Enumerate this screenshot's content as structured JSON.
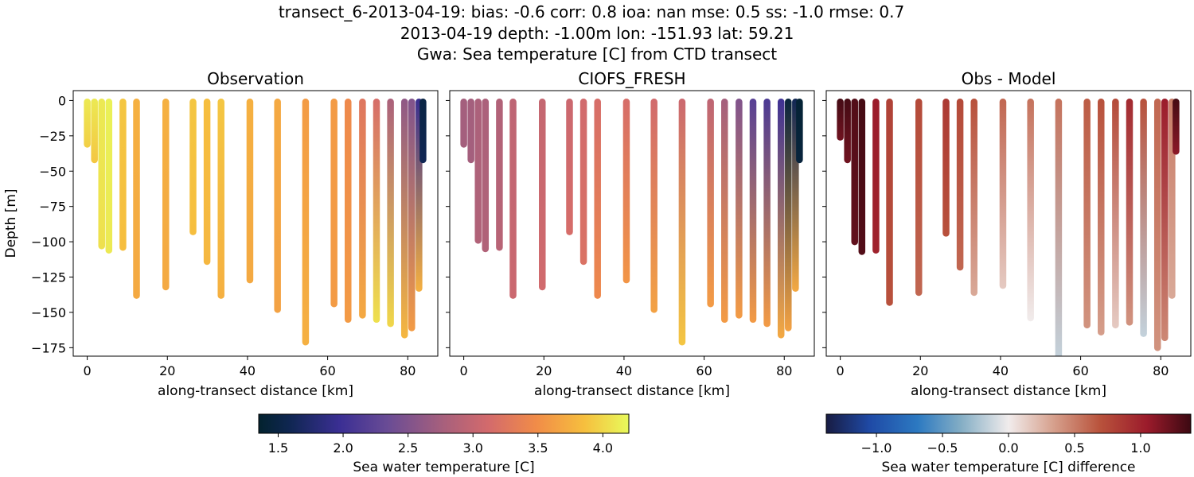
{
  "title_lines": [
    "transect_6-2013-04-19: bias: -0.6  corr: 0.8  ioa: nan  mse: 0.5  ss: -1.0  rmse: 0.7",
    "2013-04-19 depth: -1.00m lon: -151.93 lat: 59.21",
    "Gwa: Sea temperature [C] from CTD transect"
  ],
  "chart_data": [
    {
      "type": "scatter",
      "title": "Observation",
      "xlabel": "along-transect distance [km]",
      "ylabel": "Depth [m]",
      "xlim": [
        -3.5,
        87.5
      ],
      "ylim": [
        -181,
        7
      ],
      "xticks": [
        0,
        20,
        40,
        60,
        80
      ],
      "yticks": [
        0,
        -25,
        -50,
        -75,
        -100,
        -125,
        -150,
        -175
      ],
      "colormap": "thermal",
      "color_range": [
        1.35,
        4.2
      ],
      "casts": [
        {
          "x": 0.0,
          "depth": -31,
          "t_top": 4.1,
          "t_bottom": 3.95
        },
        {
          "x": 1.8,
          "depth": -42,
          "t_top": 4.1,
          "t_bottom": 3.9
        },
        {
          "x": 3.6,
          "depth": -103,
          "t_top": 4.1,
          "t_bottom": 4.05
        },
        {
          "x": 5.4,
          "depth": -106,
          "t_top": 4.15,
          "t_bottom": 4.1
        },
        {
          "x": 8.9,
          "depth": -104,
          "t_top": 3.9,
          "t_bottom": 3.85
        },
        {
          "x": 12.3,
          "depth": -138,
          "t_top": 3.75,
          "t_bottom": 3.7
        },
        {
          "x": 19.6,
          "depth": -132,
          "t_top": 3.75,
          "t_bottom": 3.7
        },
        {
          "x": 26.4,
          "depth": -93,
          "t_top": 3.9,
          "t_bottom": 3.85
        },
        {
          "x": 29.9,
          "depth": -114,
          "t_top": 3.85,
          "t_bottom": 3.8
        },
        {
          "x": 33.4,
          "depth": -138,
          "t_top": 3.9,
          "t_bottom": 3.75
        },
        {
          "x": 40.6,
          "depth": -127,
          "t_top": 3.75,
          "t_bottom": 3.7
        },
        {
          "x": 47.5,
          "depth": -148,
          "t_top": 3.7,
          "t_bottom": 3.65
        },
        {
          "x": 54.5,
          "depth": -171,
          "t_top": 3.6,
          "t_bottom": 3.75
        },
        {
          "x": 61.6,
          "depth": -144,
          "t_top": 3.6,
          "t_bottom": 3.6
        },
        {
          "x": 65.1,
          "depth": -155,
          "t_top": 3.45,
          "t_bottom": 3.6
        },
        {
          "x": 68.7,
          "depth": -152,
          "t_top": 3.25,
          "t_bottom": 3.7
        },
        {
          "x": 72.2,
          "depth": -155,
          "t_top": 3.15,
          "t_bottom": 4.05
        },
        {
          "x": 75.7,
          "depth": -158,
          "t_top": 2.8,
          "t_bottom": 4.0
        },
        {
          "x": 79.2,
          "depth": -166,
          "t_top": 2.6,
          "t_bottom": 3.8
        },
        {
          "x": 81.0,
          "depth": -161,
          "t_top": 2.5,
          "t_bottom": 3.6
        },
        {
          "x": 82.8,
          "depth": -133,
          "t_top": 1.95,
          "t_bottom": 3.75
        },
        {
          "x": 83.8,
          "depth": -42,
          "t_top": 1.5,
          "t_bottom": 1.6
        }
      ]
    },
    {
      "type": "scatter",
      "title": "CIOFS_FRESH",
      "xlabel": "along-transect distance [km]",
      "ylabel": "",
      "xlim": [
        -3.5,
        87.5
      ],
      "ylim": [
        -181,
        7
      ],
      "xticks": [
        0,
        20,
        40,
        60,
        80
      ],
      "yticks": [
        0,
        -25,
        -50,
        -75,
        -100,
        -125,
        -150,
        -175
      ],
      "colormap": "thermal",
      "color_range": [
        1.35,
        4.2
      ],
      "casts": [
        {
          "x": 0.0,
          "depth": -31,
          "t_top": 2.75,
          "t_bottom": 2.75
        },
        {
          "x": 1.8,
          "depth": -42,
          "t_top": 2.75,
          "t_bottom": 2.75
        },
        {
          "x": 3.6,
          "depth": -99,
          "t_top": 2.8,
          "t_bottom": 2.85
        },
        {
          "x": 5.4,
          "depth": -105,
          "t_top": 2.8,
          "t_bottom": 2.85
        },
        {
          "x": 8.9,
          "depth": -104,
          "t_top": 2.85,
          "t_bottom": 2.9
        },
        {
          "x": 12.3,
          "depth": -138,
          "t_top": 2.95,
          "t_bottom": 3.05
        },
        {
          "x": 19.6,
          "depth": -132,
          "t_top": 3.0,
          "t_bottom": 3.1
        },
        {
          "x": 26.4,
          "depth": -93,
          "t_top": 3.05,
          "t_bottom": 3.15
        },
        {
          "x": 29.9,
          "depth": -114,
          "t_top": 3.1,
          "t_bottom": 3.2
        },
        {
          "x": 33.4,
          "depth": -138,
          "t_top": 3.15,
          "t_bottom": 3.45
        },
        {
          "x": 40.6,
          "depth": -127,
          "t_top": 3.15,
          "t_bottom": 3.55
        },
        {
          "x": 47.5,
          "depth": -148,
          "t_top": 3.1,
          "t_bottom": 3.65
        },
        {
          "x": 54.5,
          "depth": -171,
          "t_top": 3.05,
          "t_bottom": 3.9
        },
        {
          "x": 61.6,
          "depth": -144,
          "t_top": 2.95,
          "t_bottom": 3.6
        },
        {
          "x": 65.1,
          "depth": -155,
          "t_top": 2.75,
          "t_bottom": 3.6
        },
        {
          "x": 68.7,
          "depth": -152,
          "t_top": 2.5,
          "t_bottom": 3.6
        },
        {
          "x": 72.2,
          "depth": -155,
          "t_top": 2.2,
          "t_bottom": 3.6
        },
        {
          "x": 75.7,
          "depth": -158,
          "t_top": 2.1,
          "t_bottom": 3.6
        },
        {
          "x": 79.2,
          "depth": -166,
          "t_top": 2.0,
          "t_bottom": 3.7
        },
        {
          "x": 81.0,
          "depth": -161,
          "t_top": 1.45,
          "t_bottom": 3.65
        },
        {
          "x": 82.8,
          "depth": -133,
          "t_top": 1.6,
          "t_bottom": 3.7
        },
        {
          "x": 83.8,
          "depth": -42,
          "t_top": 1.4,
          "t_bottom": 1.45
        }
      ]
    },
    {
      "type": "scatter",
      "title": "Obs - Model",
      "xlabel": "along-transect distance [km]",
      "ylabel": "",
      "xlim": [
        -3.5,
        87.5
      ],
      "ylim": [
        -181,
        7
      ],
      "xticks": [
        0,
        20,
        40,
        60,
        80
      ],
      "yticks": [
        0,
        -25,
        -50,
        -75,
        -100,
        -125,
        -150,
        -175
      ],
      "colormap": "balance",
      "color_range": [
        -1.38,
        1.38
      ],
      "casts": [
        {
          "x": 0.0,
          "depth": -26,
          "t_top": 1.35,
          "t_bottom": 1.2
        },
        {
          "x": 1.8,
          "depth": -42,
          "t_top": 1.35,
          "t_bottom": 1.2
        },
        {
          "x": 3.6,
          "depth": -100,
          "t_top": 1.3,
          "t_bottom": 1.25
        },
        {
          "x": 5.4,
          "depth": -107,
          "t_top": 1.35,
          "t_bottom": 1.3
        },
        {
          "x": 8.9,
          "depth": -106,
          "t_top": 1.05,
          "t_bottom": 1.0
        },
        {
          "x": 12.3,
          "depth": -143,
          "t_top": 0.8,
          "t_bottom": 0.7
        },
        {
          "x": 19.6,
          "depth": -136,
          "t_top": 0.75,
          "t_bottom": 0.6
        },
        {
          "x": 26.4,
          "depth": -94,
          "t_top": 0.85,
          "t_bottom": 0.7
        },
        {
          "x": 29.9,
          "depth": -118,
          "t_top": 0.75,
          "t_bottom": 0.6
        },
        {
          "x": 33.4,
          "depth": -136,
          "t_top": 0.7,
          "t_bottom": 0.3
        },
        {
          "x": 40.6,
          "depth": -131,
          "t_top": 0.6,
          "t_bottom": 0.15
        },
        {
          "x": 47.5,
          "depth": -154,
          "t_top": 0.55,
          "t_bottom": 0.0
        },
        {
          "x": 54.5,
          "depth": -181,
          "t_top": 0.55,
          "t_bottom": -0.15
        },
        {
          "x": 61.6,
          "depth": -159,
          "t_top": 0.65,
          "t_bottom": 0.4
        },
        {
          "x": 65.1,
          "depth": -164,
          "t_top": 0.7,
          "t_bottom": 0.35
        },
        {
          "x": 68.7,
          "depth": -159,
          "t_top": 0.75,
          "t_bottom": 0.15
        },
        {
          "x": 72.2,
          "depth": -157,
          "t_top": 0.95,
          "t_bottom": 0.4
        },
        {
          "x": 75.7,
          "depth": -165,
          "t_top": 0.7,
          "t_bottom": -0.15
        },
        {
          "x": 79.2,
          "depth": -175,
          "t_top": 0.6,
          "t_bottom": 0.4
        },
        {
          "x": 81.0,
          "depth": -168,
          "t_top": 1.05,
          "t_bottom": 0.45
        },
        {
          "x": 82.8,
          "depth": -138,
          "t_top": 0.5,
          "t_bottom": 0.3
        },
        {
          "x": 83.8,
          "depth": -36,
          "t_top": 1.35,
          "t_bottom": 1.1
        }
      ]
    }
  ],
  "colorbars": [
    {
      "label": "Sea water temperature [C]",
      "colormap": "thermal",
      "range": [
        1.35,
        4.2
      ],
      "ticks": [
        "1.5",
        "2.0",
        "2.5",
        "3.0",
        "3.5",
        "4.0"
      ]
    },
    {
      "label": "Sea water temperature [C] difference",
      "colormap": "balance",
      "range": [
        -1.38,
        1.38
      ],
      "ticks": [
        "−1.0",
        "−0.5",
        "0.0",
        "0.5",
        "1.0"
      ]
    }
  ]
}
